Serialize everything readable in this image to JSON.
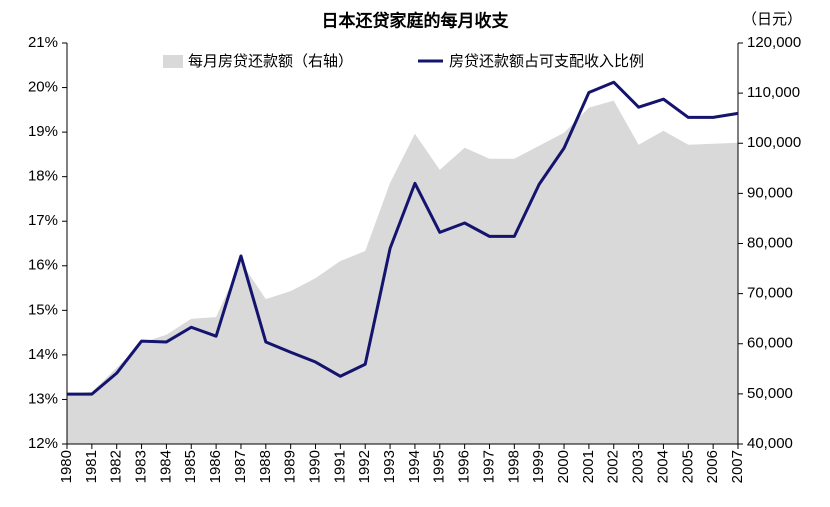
{
  "chart_data": {
    "type": "line",
    "title": "日本还贷家庭的每月收支",
    "y2_unit": "（日元）",
    "categories": [
      "1980",
      "1981",
      "1982",
      "1983",
      "1984",
      "1985",
      "1986",
      "1987",
      "1988",
      "1989",
      "1990",
      "1991",
      "1992",
      "1993",
      "1994",
      "1995",
      "1996",
      "1997",
      "1998",
      "1999",
      "2000",
      "2001",
      "2002",
      "2003",
      "2004",
      "2005",
      "2006",
      "2007"
    ],
    "series": [
      {
        "name": "每月房贷还款额（右轴）",
        "type": "area",
        "axis": "y2",
        "color": "#d9d9d9",
        "values": [
          50000,
          50400,
          55200,
          60200,
          61800,
          65000,
          65300,
          76300,
          68900,
          70500,
          73100,
          76500,
          78500,
          92100,
          101900,
          94700,
          99100,
          96900,
          96900,
          99500,
          102100,
          107100,
          108500,
          99700,
          102500,
          99700,
          99900,
          100100
        ]
      },
      {
        "name": "房贷还款额占可支配收入比例",
        "type": "line",
        "color": "#14146e",
        "values": [
          13.12,
          13.12,
          13.59,
          14.31,
          14.29,
          14.62,
          14.42,
          16.22,
          14.29,
          14.06,
          13.84,
          13.52,
          13.79,
          16.39,
          17.85,
          16.75,
          16.96,
          16.66,
          16.66,
          17.83,
          18.64,
          19.89,
          20.12,
          19.56,
          19.74,
          19.33,
          19.33,
          19.42
        ]
      }
    ],
    "ylim": [
      12,
      21
    ],
    "yticks": [
      {
        "value": 12,
        "label": "12%"
      },
      {
        "value": 13,
        "label": "13%"
      },
      {
        "value": 14,
        "label": "14%"
      },
      {
        "value": 15,
        "label": "15%"
      },
      {
        "value": 16,
        "label": "16%"
      },
      {
        "value": 17,
        "label": "17%"
      },
      {
        "value": 18,
        "label": "18%"
      },
      {
        "value": 19,
        "label": "19%"
      },
      {
        "value": 20,
        "label": "20%"
      },
      {
        "value": 21,
        "label": "21%"
      }
    ],
    "y2lim": [
      40000,
      120000
    ],
    "y2ticks": [
      {
        "value": 40000,
        "label": "40,000"
      },
      {
        "value": 50000,
        "label": "50,000"
      },
      {
        "value": 60000,
        "label": "60,000"
      },
      {
        "value": 70000,
        "label": "70,000"
      },
      {
        "value": 80000,
        "label": "80,000"
      },
      {
        "value": 90000,
        "label": "90,000"
      },
      {
        "value": 100000,
        "label": "100,000"
      },
      {
        "value": 110000,
        "label": "110,000"
      },
      {
        "value": 120000,
        "label": "120,000"
      }
    ]
  }
}
